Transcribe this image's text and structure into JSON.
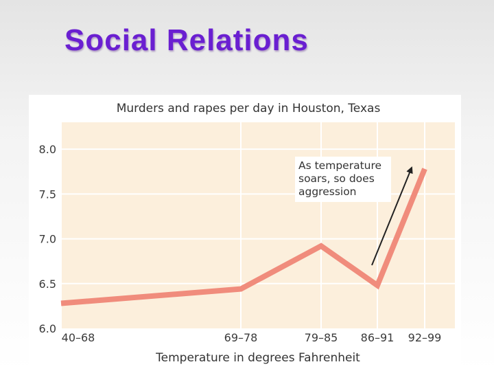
{
  "slide": {
    "title": "Social Relations"
  },
  "chart_data": {
    "type": "line",
    "title": "Murders and rapes per day in Houston, Texas",
    "xlabel": "Temperature in degrees Fahrenheit",
    "ylabel": "",
    "categories": [
      "40–68",
      "69–78",
      "79–85",
      "86–91",
      "92–99"
    ],
    "y_ticks": [
      6.0,
      6.5,
      7.0,
      7.5,
      8.0
    ],
    "y_tick_labels": [
      "6.0",
      "6.5",
      "7.0",
      "7.5",
      "8.0"
    ],
    "ylim": [
      6.0,
      8.3
    ],
    "series": [
      {
        "name": "",
        "x": [
          0,
          69,
          79,
          86,
          92
        ],
        "values": [
          6.28,
          6.44,
          6.92,
          6.48,
          7.78
        ],
        "color": "#f08c7c"
      }
    ],
    "annotation": {
      "lines": [
        "As temperature",
        "soars, so does",
        "aggression"
      ]
    },
    "colors": {
      "plot_background": "#fcefdc",
      "gridline": "#ffffff",
      "line": "#f08c7c",
      "arrow": "#222222"
    }
  }
}
